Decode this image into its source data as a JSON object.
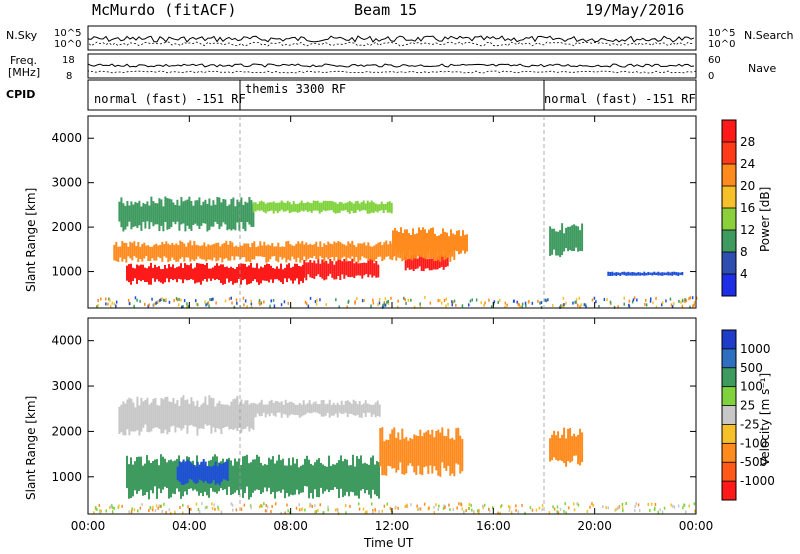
{
  "header": {
    "station": "McMurdo (fitACF)",
    "beam": "Beam 15",
    "date": "19/May/2016"
  },
  "strip_labels": {
    "nsky": "N.Sky",
    "nsearch": "N.Search",
    "freq_line1": "Freq.",
    "freq_line2": "[MHz]",
    "nave": "Nave",
    "cpid": "CPID",
    "nsky_ticks": [
      "10^5",
      "10^0"
    ],
    "nsearch_ticks": [
      "10^5",
      "10^0"
    ],
    "freq_ticks": [
      "18",
      "8"
    ],
    "nave_ticks": [
      "60",
      "0"
    ]
  },
  "cpid_segments": [
    {
      "label": "normal (fast) -151 RF",
      "start_hour": 0,
      "end_hour": 6
    },
    {
      "label": "themis 3300 RF",
      "start_hour": 6,
      "end_hour": 18
    },
    {
      "label": "normal (fast) -151 RF",
      "start_hour": 18,
      "end_hour": 24
    }
  ],
  "colors": {
    "red": "#ff1a1a",
    "orange": "#ff8a1e",
    "yellow": "#f5c02a",
    "lightgreen": "#7fd23c",
    "darkgreen": "#3f9a60",
    "gray": "#c7c7c7",
    "blue": "#1e4fd8",
    "darkblue": "#2a3cb0"
  },
  "chart_data": [
    {
      "type": "heatmap",
      "name_key": "power",
      "ylabel": "Slant Range [km]",
      "xlabel": "",
      "xlim": [
        0,
        24
      ],
      "ylim": [
        180,
        4500
      ],
      "x_ticks": [
        "00:00",
        "04:00",
        "08:00",
        "12:00",
        "16:00",
        "20:00",
        "00:00"
      ],
      "y_ticks": [
        1000,
        2000,
        3000,
        4000
      ],
      "colorbar": {
        "label": "Power [dB]",
        "tick_labels": [
          "4",
          "8",
          "12",
          "16",
          "20",
          "24",
          "28"
        ],
        "colors": [
          "#1e2ee6",
          "#2f4fb0",
          "#3f9a60",
          "#8bcf3a",
          "#f5c02a",
          "#ff8a1e",
          "#ff3b1a",
          "#ff1a1a"
        ]
      },
      "regions": [
        {
          "x": [
            1.5,
            8.5
          ],
          "y": [
            700,
            1200
          ],
          "value": "red"
        },
        {
          "x": [
            8.5,
            11.5
          ],
          "y": [
            800,
            1300
          ],
          "value": "red"
        },
        {
          "x": [
            12.5,
            14.2
          ],
          "y": [
            1000,
            1400
          ],
          "value": "red"
        },
        {
          "x": [
            1.0,
            14.5
          ],
          "y": [
            1200,
            1700
          ],
          "value": "orange"
        },
        {
          "x": [
            1.2,
            6.5
          ],
          "y": [
            1900,
            2700
          ],
          "value": "darkgreen"
        },
        {
          "x": [
            6.5,
            12.0
          ],
          "y": [
            2300,
            2600
          ],
          "value": "lightgreen"
        },
        {
          "x": [
            12.0,
            15.0
          ],
          "y": [
            1300,
            2000
          ],
          "value": "orange"
        },
        {
          "x": [
            18.2,
            19.5
          ],
          "y": [
            1300,
            2100
          ],
          "value": "darkgreen"
        },
        {
          "x": [
            20.5,
            23.5
          ],
          "y": [
            900,
            1000
          ],
          "value": "blue"
        }
      ]
    },
    {
      "type": "heatmap",
      "name_key": "velocity",
      "ylabel": "Slant Range [km]",
      "xlabel": "Time UT",
      "xlim": [
        0,
        24
      ],
      "ylim": [
        180,
        4500
      ],
      "x_ticks": [
        "00:00",
        "04:00",
        "08:00",
        "12:00",
        "16:00",
        "20:00",
        "00:00"
      ],
      "y_ticks": [
        1000,
        2000,
        3000,
        4000
      ],
      "colorbar": {
        "label": "Velocity [m s⁻¹]",
        "tick_labels": [
          "1000",
          "500",
          "100",
          "25",
          "-25",
          "-100",
          "-500",
          "-1000"
        ],
        "colors": [
          "#1e3cc8",
          "#2f6fc0",
          "#3f9a60",
          "#7fd23c",
          "#c7c7c7",
          "#f5c02a",
          "#ff8a1e",
          "#ff5a1a",
          "#ff1a1a"
        ]
      },
      "regions": [
        {
          "x": [
            1.5,
            11.5
          ],
          "y": [
            500,
            1500
          ],
          "value": "darkgreen"
        },
        {
          "x": [
            1.2,
            6.5
          ],
          "y": [
            1900,
            2800
          ],
          "value": "gray"
        },
        {
          "x": [
            6.5,
            11.5
          ],
          "y": [
            2300,
            2700
          ],
          "value": "gray"
        },
        {
          "x": [
            11.5,
            14.8
          ],
          "y": [
            1000,
            2100
          ],
          "value": "orange"
        },
        {
          "x": [
            18.2,
            19.5
          ],
          "y": [
            1200,
            2100
          ],
          "value": "orange"
        },
        {
          "x": [
            3.5,
            5.5
          ],
          "y": [
            800,
            1400
          ],
          "value": "blue"
        }
      ]
    }
  ]
}
